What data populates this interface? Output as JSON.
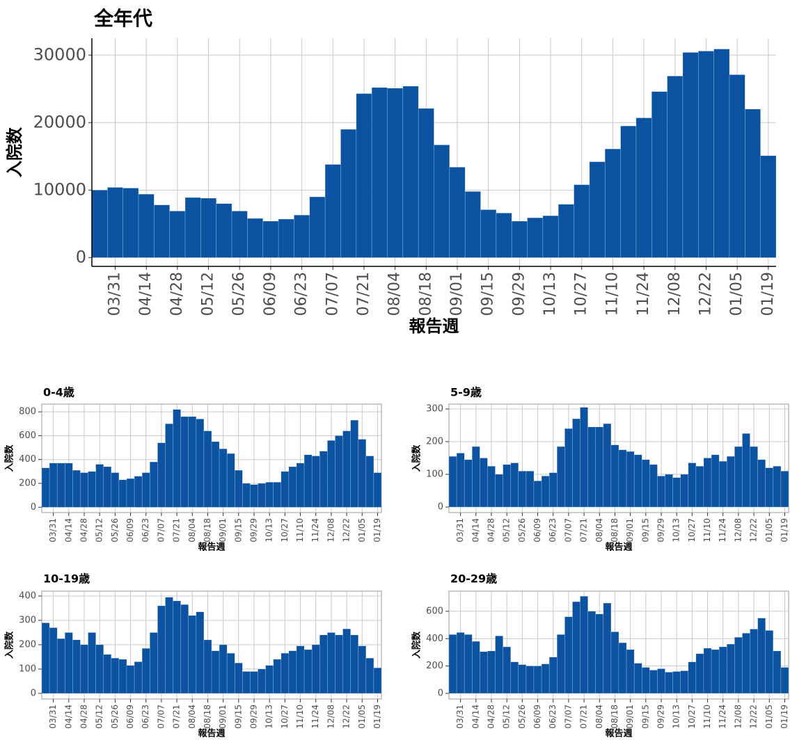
{
  "chart_data": [
    {
      "type": "bar",
      "title": "全年代",
      "x_label": "報告週",
      "y_label": "入院数",
      "color": "#0b52a0",
      "grid": true,
      "categories": [
        null,
        "03/31",
        null,
        "04/14",
        null,
        "04/28",
        null,
        "05/12",
        null,
        "05/26",
        null,
        "06/09",
        null,
        "06/23",
        null,
        "07/07",
        null,
        "07/21",
        null,
        "08/04",
        null,
        "08/18",
        null,
        "09/01",
        null,
        "09/15",
        null,
        "09/29",
        null,
        "10/13",
        null,
        "10/27",
        null,
        "11/10",
        null,
        "11/24",
        null,
        "12/08",
        null,
        "12/22",
        null,
        "01/05",
        null,
        "01/19"
      ],
      "values": [
        10000,
        10400,
        10300,
        9400,
        7800,
        6900,
        8900,
        8800,
        8000,
        6900,
        5800,
        5400,
        5700,
        6300,
        9000,
        13800,
        19000,
        24300,
        25200,
        25100,
        25400,
        22100,
        16700,
        13400,
        9800,
        7100,
        6600,
        5400,
        5900,
        6200,
        7900,
        10800,
        14200,
        16100,
        19500,
        20700,
        24600,
        26900,
        30400,
        30600,
        30900,
        27100,
        22000,
        15100
      ],
      "ylim": [
        -1300,
        32500
      ],
      "yticks": [
        0,
        10000,
        20000,
        30000
      ]
    },
    {
      "type": "bar",
      "title": "0-4歳",
      "x_label": "報告週",
      "y_label": "入院数",
      "color": "#0b52a0",
      "grid": true,
      "categories": [
        null,
        "03/31",
        null,
        "04/14",
        null,
        "04/28",
        null,
        "05/12",
        null,
        "05/26",
        null,
        "06/09",
        null,
        "06/23",
        null,
        "07/07",
        null,
        "07/21",
        null,
        "08/04",
        null,
        "08/18",
        null,
        "09/01",
        null,
        "09/15",
        null,
        "09/29",
        null,
        "10/13",
        null,
        "10/27",
        null,
        "11/10",
        null,
        "11/24",
        null,
        "12/08",
        null,
        "12/22",
        null,
        "01/05",
        null,
        "01/19"
      ],
      "values": [
        330,
        370,
        370,
        370,
        310,
        290,
        300,
        360,
        340,
        290,
        230,
        240,
        260,
        290,
        380,
        540,
        700,
        820,
        760,
        760,
        740,
        640,
        550,
        490,
        450,
        310,
        200,
        190,
        200,
        210,
        210,
        300,
        340,
        370,
        440,
        430,
        470,
        560,
        600,
        640,
        730,
        570,
        430,
        290
      ],
      "ylim": [
        -45,
        865
      ],
      "yticks": [
        0,
        200,
        400,
        600,
        800
      ]
    },
    {
      "type": "bar",
      "title": "5-9歳",
      "x_label": "報告週",
      "y_label": "入院数",
      "color": "#0b52a0",
      "grid": true,
      "categories": [
        null,
        "03/31",
        null,
        "04/14",
        null,
        "04/28",
        null,
        "05/12",
        null,
        "05/26",
        null,
        "06/09",
        null,
        "06/23",
        null,
        "07/07",
        null,
        "07/21",
        null,
        "08/04",
        null,
        "08/18",
        null,
        "09/01",
        null,
        "09/15",
        null,
        "09/29",
        null,
        "10/13",
        null,
        "10/27",
        null,
        "11/10",
        null,
        "11/24",
        null,
        "12/08",
        null,
        "12/22",
        null,
        "01/05",
        null,
        "01/19"
      ],
      "values": [
        155,
        165,
        145,
        185,
        150,
        125,
        100,
        130,
        135,
        110,
        110,
        80,
        95,
        105,
        185,
        240,
        270,
        305,
        245,
        245,
        255,
        190,
        175,
        170,
        160,
        145,
        130,
        95,
        100,
        90,
        100,
        135,
        125,
        150,
        160,
        140,
        155,
        185,
        225,
        185,
        145,
        120,
        125,
        110
      ],
      "ylim": [
        -17,
        315
      ],
      "yticks": [
        0,
        100,
        200,
        300
      ]
    },
    {
      "type": "bar",
      "title": "10-19歳",
      "x_label": "報告週",
      "y_label": "入院数",
      "color": "#0b52a0",
      "grid": true,
      "categories": [
        null,
        "03/31",
        null,
        "04/14",
        null,
        "04/28",
        null,
        "05/12",
        null,
        "05/26",
        null,
        "06/09",
        null,
        "06/23",
        null,
        "07/07",
        null,
        "07/21",
        null,
        "08/04",
        null,
        "08/18",
        null,
        "09/01",
        null,
        "09/15",
        null,
        "09/29",
        null,
        "10/13",
        null,
        "10/27",
        null,
        "11/10",
        null,
        "11/24",
        null,
        "12/08",
        null,
        "12/22",
        null,
        "01/05",
        null,
        "01/19"
      ],
      "values": [
        290,
        270,
        225,
        250,
        220,
        200,
        250,
        200,
        160,
        145,
        140,
        115,
        130,
        185,
        250,
        360,
        395,
        380,
        365,
        320,
        335,
        220,
        175,
        200,
        165,
        125,
        90,
        90,
        100,
        115,
        140,
        165,
        175,
        195,
        180,
        200,
        240,
        250,
        240,
        265,
        240,
        195,
        145,
        105
      ],
      "ylim": [
        -23,
        420
      ],
      "yticks": [
        0,
        100,
        200,
        300,
        400
      ]
    },
    {
      "type": "bar",
      "title": "20-29歳",
      "x_label": "報告週",
      "y_label": "入院数",
      "color": "#0b52a0",
      "grid": true,
      "categories": [
        null,
        "03/31",
        null,
        "04/14",
        null,
        "04/28",
        null,
        "05/12",
        null,
        "05/26",
        null,
        "06/09",
        null,
        "06/23",
        null,
        "07/07",
        null,
        "07/21",
        null,
        "08/04",
        null,
        "08/18",
        null,
        "09/01",
        null,
        "09/15",
        null,
        "09/29",
        null,
        "10/13",
        null,
        "10/27",
        null,
        "11/10",
        null,
        "11/24",
        null,
        "12/08",
        null,
        "12/22",
        null,
        "01/05",
        null,
        "01/19"
      ],
      "values": [
        430,
        445,
        430,
        380,
        305,
        310,
        420,
        340,
        230,
        210,
        200,
        200,
        215,
        265,
        430,
        560,
        670,
        710,
        600,
        580,
        660,
        450,
        370,
        320,
        220,
        190,
        170,
        180,
        155,
        160,
        165,
        230,
        290,
        330,
        320,
        340,
        360,
        410,
        440,
        470,
        550,
        460,
        310,
        190
      ],
      "ylim": [
        -41,
        747
      ],
      "yticks": [
        0,
        200,
        400,
        600
      ]
    }
  ]
}
